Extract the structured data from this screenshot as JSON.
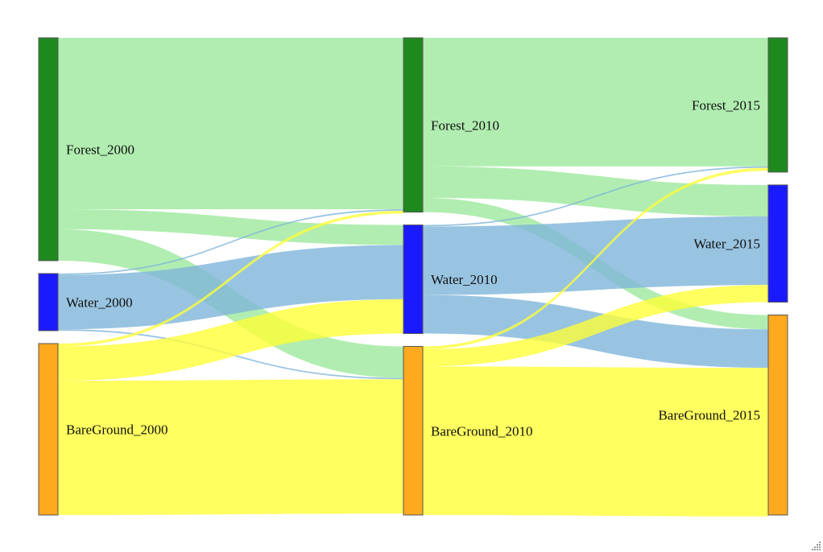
{
  "chart_data": {
    "type": "sankey",
    "columns": [
      "2000",
      "2010",
      "2015"
    ],
    "nodes": [
      {
        "id": "Forest_2000",
        "label": "Forest_2000",
        "column": 0,
        "value": 78,
        "color": "#1e8a1e"
      },
      {
        "id": "Water_2000",
        "label": "Water_2000",
        "column": 0,
        "value": 20,
        "color": "#1a1aff"
      },
      {
        "id": "BareGround_2000",
        "label": "BareGround_2000",
        "column": 0,
        "value": 60,
        "color": "#ffa91f"
      },
      {
        "id": "Forest_2010",
        "label": "Forest_2010",
        "column": 1,
        "value": 61,
        "color": "#1e8a1e"
      },
      {
        "id": "Water_2010",
        "label": "Water_2010",
        "column": 1,
        "value": 38,
        "color": "#1a1aff"
      },
      {
        "id": "BareGround_2010",
        "label": "BareGround_2010",
        "column": 1,
        "value": 59,
        "color": "#ffa91f"
      },
      {
        "id": "Forest_2015",
        "label": "Forest_2015",
        "column": 2,
        "value": 47,
        "color": "#1e8a1e"
      },
      {
        "id": "Water_2015",
        "label": "Water_2015",
        "column": 2,
        "value": 41,
        "color": "#1a1aff"
      },
      {
        "id": "BareGround_2015",
        "label": "BareGround_2015",
        "column": 2,
        "value": 70,
        "color": "#ffa91f"
      }
    ],
    "links": [
      {
        "source": "Forest_2000",
        "target": "Forest_2010",
        "value": 60
      },
      {
        "source": "Forest_2000",
        "target": "Water_2010",
        "value": 7
      },
      {
        "source": "Forest_2000",
        "target": "BareGround_2010",
        "value": 11
      },
      {
        "source": "Water_2000",
        "target": "Forest_2010",
        "value": 0.5
      },
      {
        "source": "Water_2000",
        "target": "Water_2010",
        "value": 19
      },
      {
        "source": "Water_2000",
        "target": "BareGround_2010",
        "value": 0.5
      },
      {
        "source": "BareGround_2000",
        "target": "Forest_2010",
        "value": 1
      },
      {
        "source": "BareGround_2000",
        "target": "Water_2010",
        "value": 12
      },
      {
        "source": "BareGround_2000",
        "target": "BareGround_2010",
        "value": 47
      },
      {
        "source": "Forest_2010",
        "target": "Forest_2015",
        "value": 45
      },
      {
        "source": "Forest_2010",
        "target": "Water_2015",
        "value": 11
      },
      {
        "source": "Forest_2010",
        "target": "BareGround_2015",
        "value": 5
      },
      {
        "source": "Water_2010",
        "target": "Forest_2015",
        "value": 0.5
      },
      {
        "source": "Water_2010",
        "target": "Water_2015",
        "value": 24
      },
      {
        "source": "Water_2010",
        "target": "BareGround_2015",
        "value": 13.5
      },
      {
        "source": "BareGround_2010",
        "target": "Forest_2015",
        "value": 1
      },
      {
        "source": "BareGround_2010",
        "target": "Water_2015",
        "value": 6
      },
      {
        "source": "BareGround_2010",
        "target": "BareGround_2015",
        "value": 52
      }
    ],
    "link_colors": {
      "Forest": "#9de89d",
      "Water": "#7fb5da",
      "BareGround": "#ffff33"
    },
    "title": "",
    "xlabel": "",
    "ylabel": "",
    "grid": false,
    "legend": "none"
  }
}
